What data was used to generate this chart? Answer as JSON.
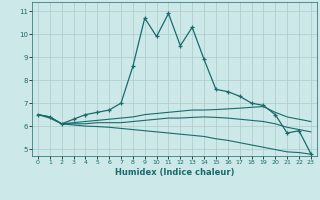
{
  "xlabel": "Humidex (Indice chaleur)",
  "ylabel": "",
  "background_color": "#cce8e8",
  "line_color": "#1a6b6b",
  "xlim": [
    -0.5,
    23.5
  ],
  "ylim": [
    4.7,
    11.4
  ],
  "xticks": [
    0,
    1,
    2,
    3,
    4,
    5,
    6,
    7,
    8,
    9,
    10,
    11,
    12,
    13,
    14,
    15,
    16,
    17,
    18,
    19,
    20,
    21,
    22,
    23
  ],
  "yticks": [
    5,
    6,
    7,
    8,
    9,
    10,
    11
  ],
  "line1_x": [
    0,
    1,
    2,
    3,
    4,
    5,
    6,
    7,
    8,
    9,
    10,
    11,
    12,
    13,
    14,
    15,
    16,
    17,
    18,
    19,
    20,
    21,
    22,
    23
  ],
  "line1_y": [
    6.5,
    6.4,
    6.1,
    6.3,
    6.5,
    6.6,
    6.7,
    7.0,
    8.6,
    10.7,
    9.9,
    10.9,
    9.5,
    10.3,
    8.9,
    7.6,
    7.5,
    7.3,
    7.0,
    6.9,
    6.5,
    5.7,
    5.8,
    4.8
  ],
  "line2_x": [
    0,
    1,
    2,
    3,
    4,
    5,
    6,
    7,
    8,
    9,
    10,
    11,
    12,
    13,
    14,
    15,
    16,
    17,
    18,
    19,
    20,
    21,
    22,
    23
  ],
  "line2_y": [
    6.5,
    6.4,
    6.1,
    6.15,
    6.2,
    6.25,
    6.3,
    6.35,
    6.4,
    6.5,
    6.55,
    6.6,
    6.65,
    6.7,
    6.7,
    6.72,
    6.75,
    6.78,
    6.82,
    6.85,
    6.6,
    6.4,
    6.3,
    6.2
  ],
  "line3_x": [
    0,
    1,
    2,
    3,
    4,
    5,
    6,
    7,
    8,
    9,
    10,
    11,
    12,
    13,
    14,
    15,
    16,
    17,
    18,
    19,
    20,
    21,
    22,
    23
  ],
  "line3_y": [
    6.5,
    6.4,
    6.1,
    6.1,
    6.1,
    6.15,
    6.15,
    6.15,
    6.2,
    6.25,
    6.3,
    6.35,
    6.35,
    6.38,
    6.4,
    6.38,
    6.35,
    6.3,
    6.25,
    6.2,
    6.1,
    5.95,
    5.85,
    5.75
  ],
  "line4_x": [
    0,
    1,
    2,
    3,
    4,
    5,
    6,
    7,
    8,
    9,
    10,
    11,
    12,
    13,
    14,
    15,
    16,
    17,
    18,
    19,
    20,
    21,
    22,
    23
  ],
  "line4_y": [
    6.5,
    6.35,
    6.1,
    6.05,
    6.0,
    5.98,
    5.95,
    5.9,
    5.85,
    5.8,
    5.75,
    5.7,
    5.65,
    5.6,
    5.55,
    5.45,
    5.38,
    5.28,
    5.18,
    5.08,
    4.98,
    4.88,
    4.85,
    4.78
  ]
}
